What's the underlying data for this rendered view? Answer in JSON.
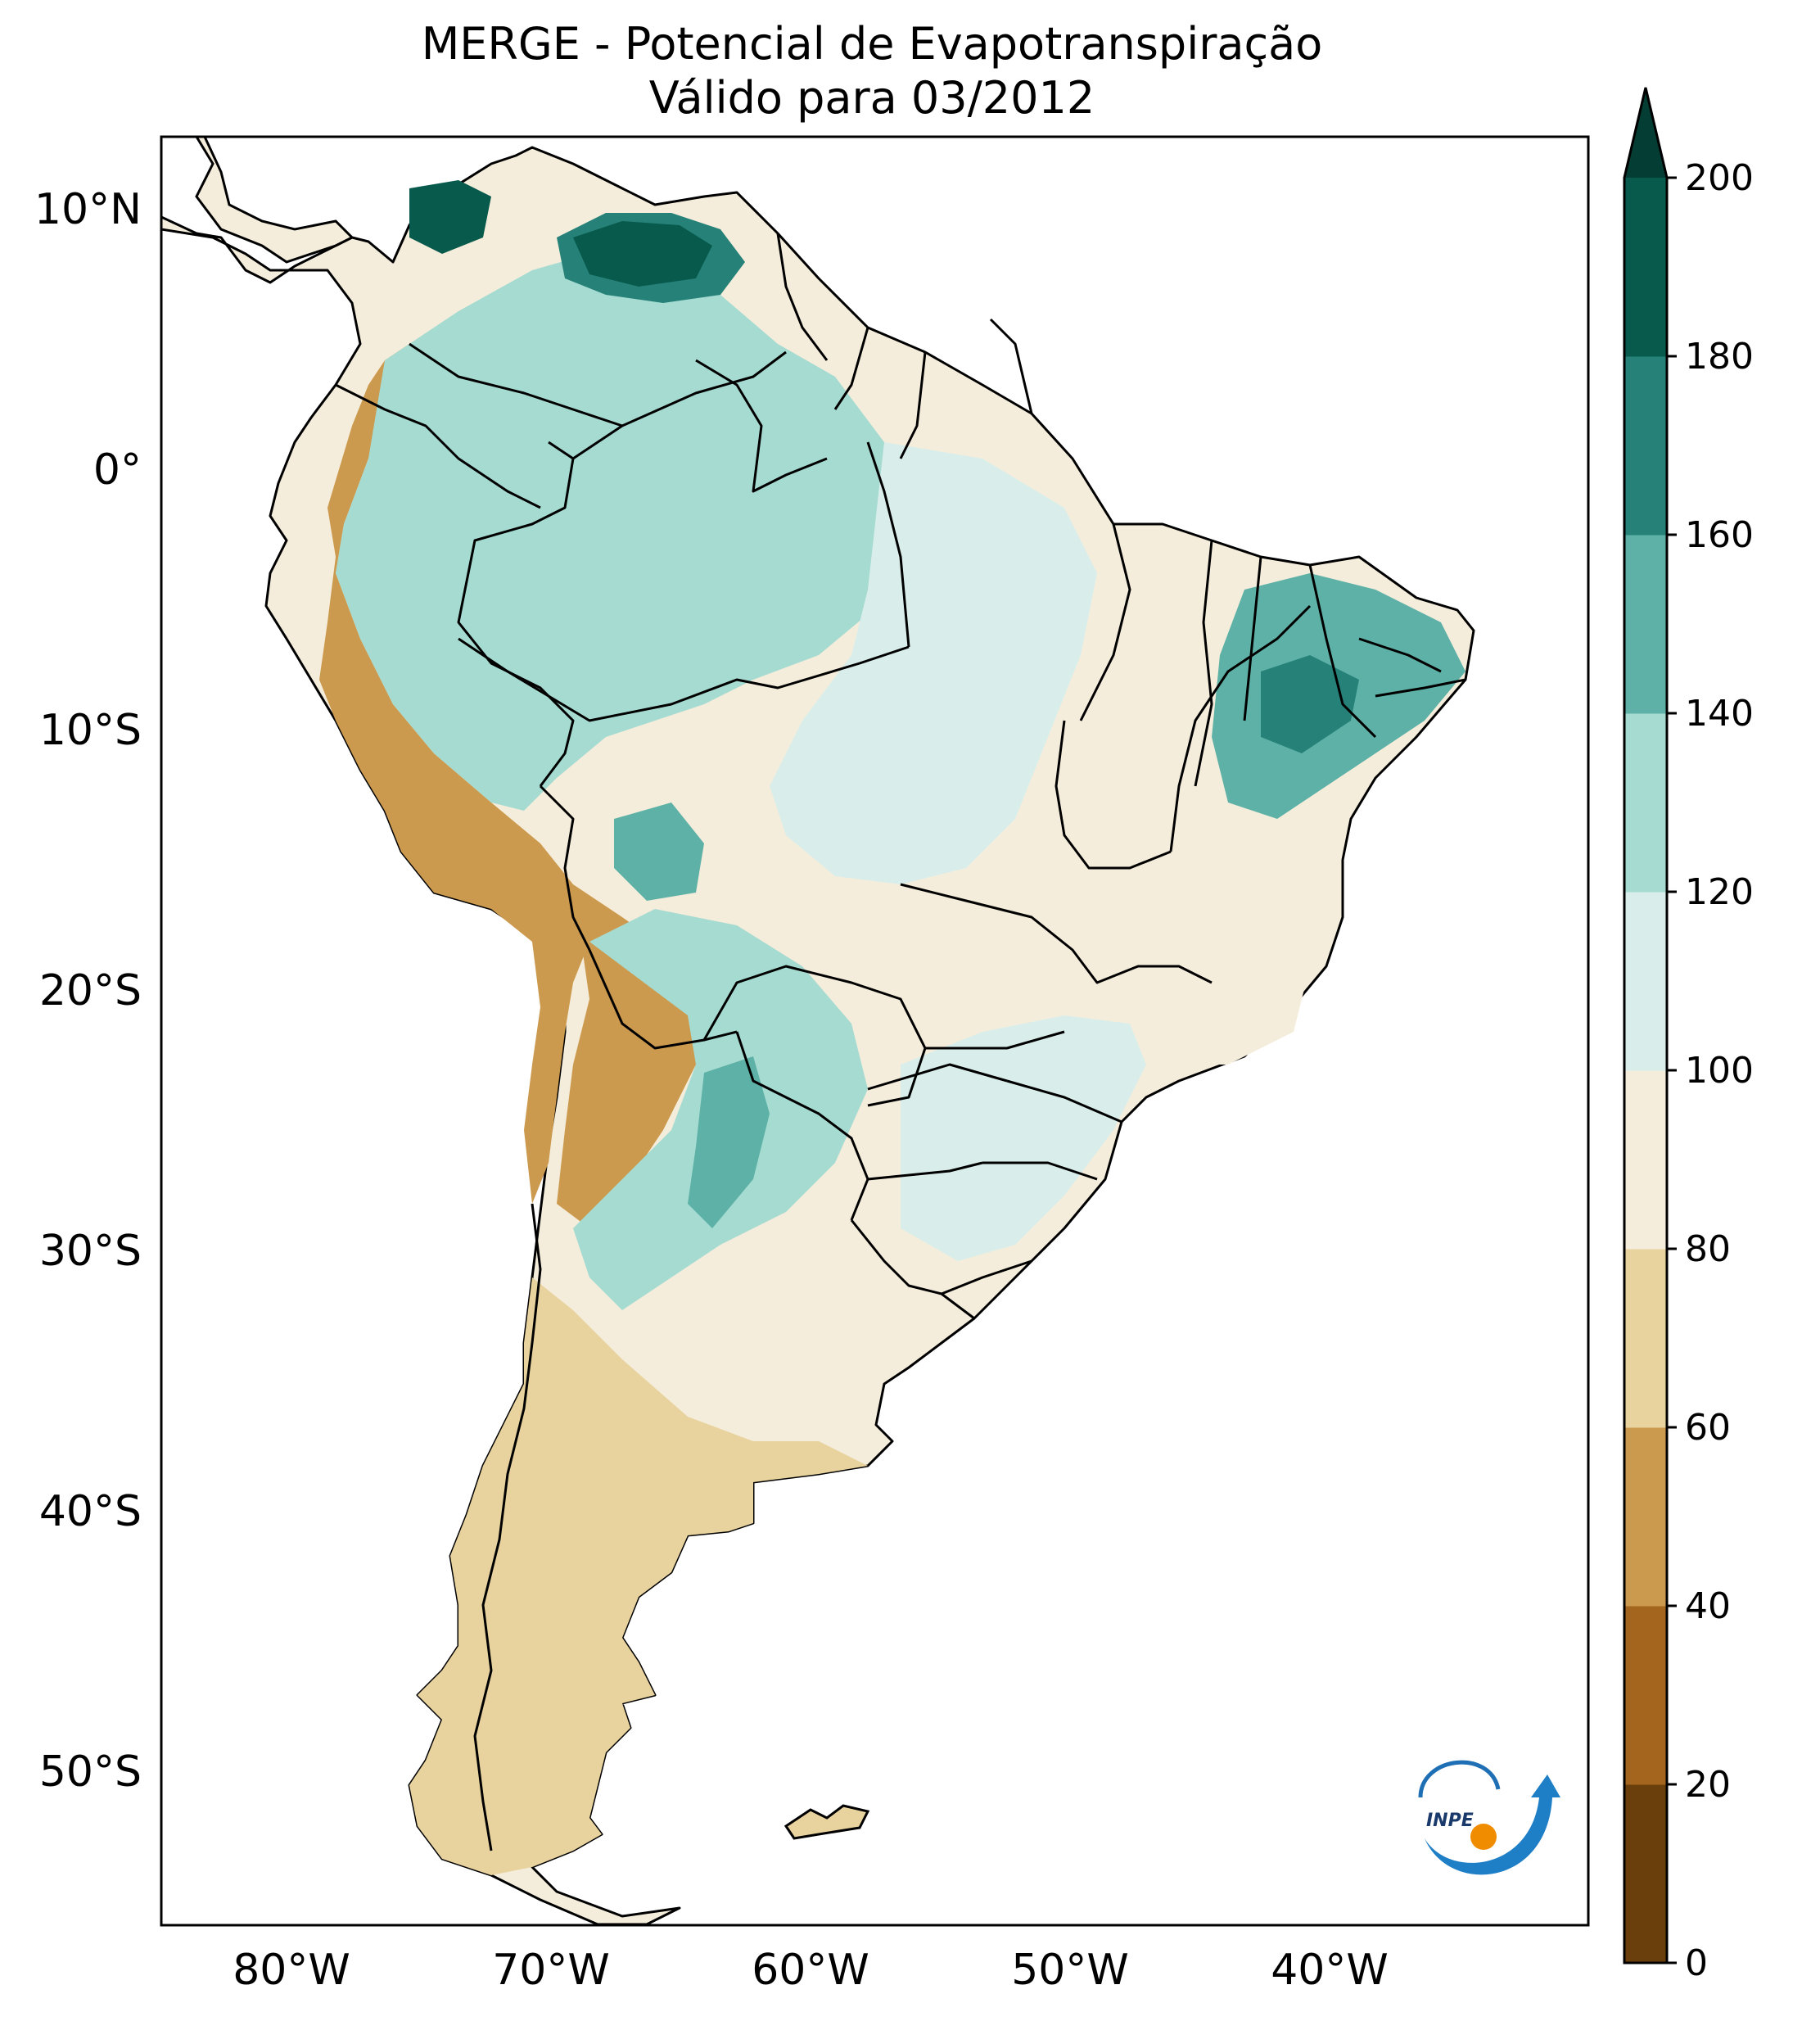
{
  "title": {
    "line1": "MERGE - Potencial de Evapotranspiração",
    "line2": "Válido para 03/2012"
  },
  "map": {
    "region": "South America",
    "lon_range": [
      -85,
      -30
    ],
    "lat_range": [
      -56,
      13
    ],
    "lat_labels": [
      "10°N",
      "0°",
      "10°S",
      "20°S",
      "30°S",
      "40°S",
      "50°S"
    ],
    "lon_labels": [
      "80°W",
      "70°W",
      "60°W",
      "50°W",
      "40°W"
    ],
    "land_color": "#f5eddb",
    "border_color": "#000000"
  },
  "colorbar": {
    "tick_labels": [
      "0",
      "20",
      "40",
      "60",
      "80",
      "100",
      "120",
      "140",
      "160",
      "180",
      "200"
    ],
    "levels": [
      0,
      20,
      40,
      60,
      80,
      100,
      120,
      140,
      160,
      180,
      200
    ],
    "colors": [
      "#6b3f0c",
      "#a4661e",
      "#cc9a4e",
      "#e8d39e",
      "#f5eddb",
      "#d9eeeb",
      "#a6dbd2",
      "#5eb1a6",
      "#268278",
      "#085a4d"
    ],
    "extend": "max",
    "extend_color": "#033d33"
  },
  "logo": {
    "text": "INPE"
  }
}
